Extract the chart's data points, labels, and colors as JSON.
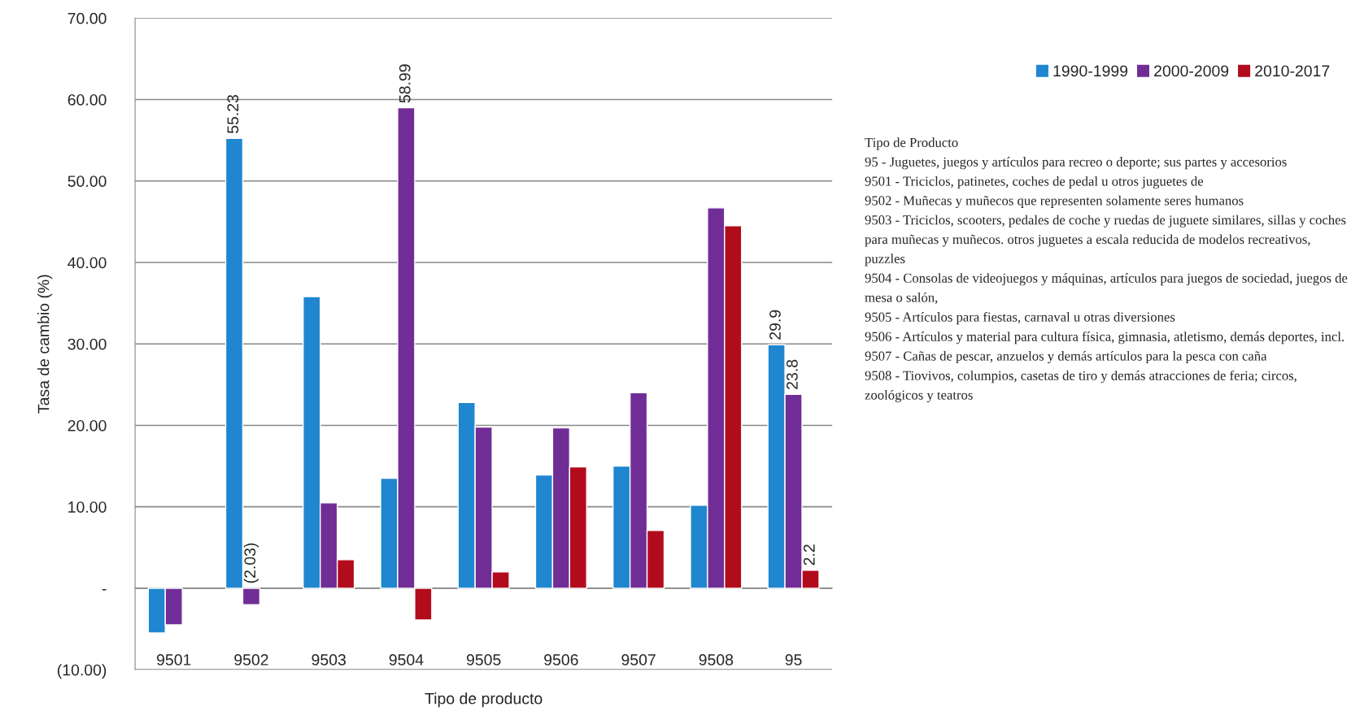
{
  "chart_data": {
    "type": "bar",
    "xlabel": "Tipo de producto",
    "ylabel": "Tasa de cambio (%)",
    "categories": [
      "9501",
      "9502",
      "9503",
      "9504",
      "9505",
      "9506",
      "9507",
      "9508",
      "95"
    ],
    "series": [
      {
        "name": "1990-1999",
        "color": "#1f86cf",
        "values": [
          -5.5,
          55.23,
          35.8,
          13.5,
          22.8,
          13.9,
          15.0,
          10.2,
          29.9
        ],
        "value_labels": [
          null,
          "55.23",
          null,
          null,
          null,
          null,
          null,
          null,
          "29.9"
        ]
      },
      {
        "name": "2000-2009",
        "color": "#712d96",
        "values": [
          -4.5,
          -2.03,
          10.5,
          58.99,
          19.8,
          19.7,
          24.0,
          46.7,
          23.8
        ],
        "value_labels": [
          null,
          "(2.03)",
          null,
          "58.99",
          null,
          null,
          null,
          null,
          "23.8"
        ]
      },
      {
        "name": "2010-2017",
        "color": "#b20c1c",
        "values": [
          null,
          null,
          3.5,
          -3.9,
          2.0,
          14.9,
          7.1,
          44.5,
          2.2
        ],
        "value_labels": [
          null,
          null,
          null,
          null,
          null,
          null,
          null,
          null,
          "2.2"
        ]
      }
    ],
    "ylim": [
      -10,
      70
    ],
    "yticks": [
      {
        "value": -10,
        "label": "(10.00)"
      },
      {
        "value": 0,
        "label": "-"
      },
      {
        "value": 10,
        "label": "10.00"
      },
      {
        "value": 20,
        "label": "20.00"
      },
      {
        "value": 30,
        "label": "30.00"
      },
      {
        "value": 40,
        "label": "40.00"
      },
      {
        "value": 50,
        "label": "50.00"
      },
      {
        "value": 60,
        "label": "60.00"
      },
      {
        "value": 70,
        "label": "70.00"
      }
    ],
    "grid": "y",
    "legend": "top right",
    "annotations": [
      "Tipo de Producto",
      "95 - Juguetes, juegos y artículos para recreo o deporte; sus partes y accesorios",
      "9501 - Triciclos, patinetes, coches de pedal u otros juguetes de",
      "9502 - Muñecas y muñecos que representen solamente seres humanos",
      "9503 - Triciclos, scooters, pedales de coche y ruedas de juguete similares, sillas y coches para muñecas y muñecos. otros juguetes a escala reducida de modelos recreativos, puzzles",
      "9504 - Consolas de videojuegos y máquinas, artículos para juegos de sociedad, juegos de mesa o salón,",
      "9505 - Artículos para fiestas, carnaval u otras diversiones",
      "9506 - Artículos y material para cultura física, gimnasia, atletismo, demás deportes, incl.",
      "9507 - Cañas de pescar, anzuelos y demás artículos para la pesca con caña",
      "9508 - Tiovivos, columpios, casetas de tiro y demás atracciones de feria; circos, zoológicos y teatros"
    ]
  }
}
